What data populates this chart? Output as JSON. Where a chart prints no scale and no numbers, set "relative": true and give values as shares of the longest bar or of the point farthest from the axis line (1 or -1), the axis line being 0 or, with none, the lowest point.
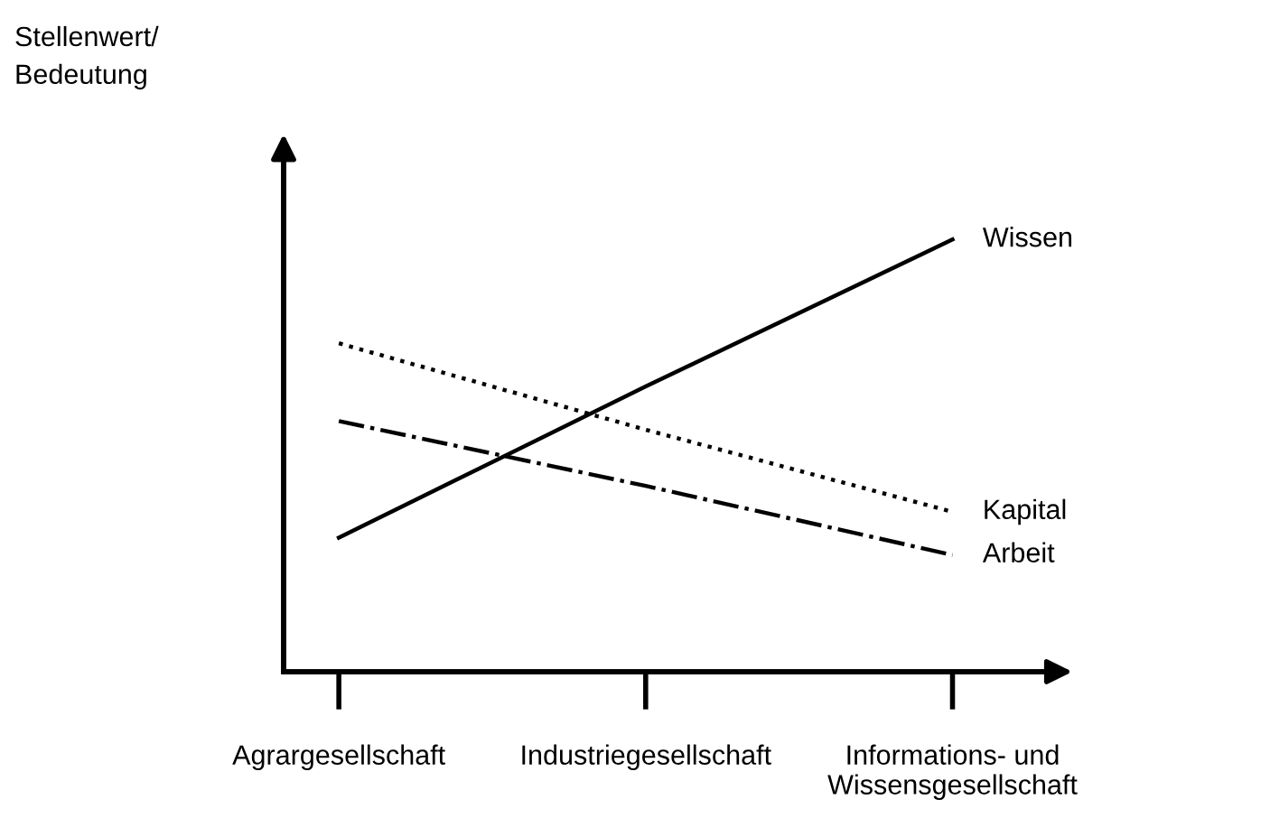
{
  "chart_data": {
    "type": "line",
    "relative": true,
    "annotations": [
      "Stellenwert/\nBedeutung"
    ],
    "categories": [
      "Agrargesellschaft",
      "Industriegesellschaft",
      "Informations- und\nWissensgesellschaft"
    ],
    "series": [
      {
        "name": "Wissen",
        "color": "#000000",
        "line_style": "solid",
        "values": [
          0.31,
          0.66,
          1.0
        ]
      },
      {
        "name": "Kapital",
        "color": "#000000",
        "line_style": "dotted",
        "values": [
          0.76,
          0.56,
          0.37
        ]
      },
      {
        "name": "Arbeit",
        "color": "#000000",
        "line_style": "dashdot",
        "values": [
          0.58,
          0.43,
          0.27
        ]
      }
    ],
    "marker": "none",
    "grid": false,
    "legend": false
  }
}
